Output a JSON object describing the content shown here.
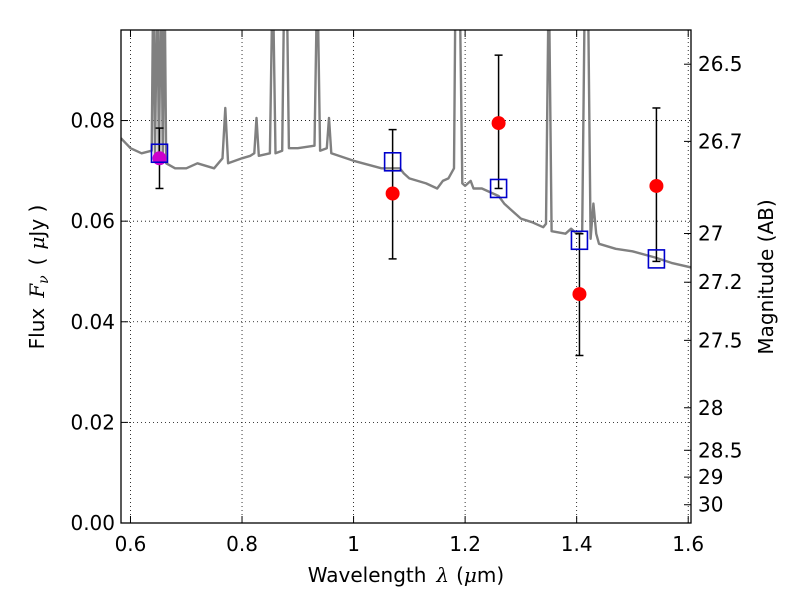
{
  "chart_data": {
    "type": "line",
    "xlabel": "Wavelength",
    "xlabel_symbol": "λ",
    "xlabel_unit_open": "(",
    "xlabel_unit_mu": "μ",
    "xlabel_unit_rest": "m)",
    "ylabel": "Flux",
    "ylabel_symbol": "F",
    "ylabel_sub": "ν",
    "ylabel_unit_open": "(",
    "ylabel_unit_mu": "μ",
    "ylabel_unit_rest": "Jy )",
    "y2label": "Magnitude (AB)",
    "xlim": [
      0.583,
      1.605
    ],
    "ylim": [
      0.0,
      0.098
    ],
    "grid": true,
    "x_ticks": [
      {
        "value": 0.6,
        "label": "0.6"
      },
      {
        "value": 0.8,
        "label": "0.8"
      },
      {
        "value": 1.0,
        "label": "1"
      },
      {
        "value": 1.2,
        "label": "1.2"
      },
      {
        "value": 1.4,
        "label": "1.4"
      },
      {
        "value": 1.6,
        "label": "1.6"
      }
    ],
    "y_ticks": [
      {
        "value": 0.0,
        "label": "0.00"
      },
      {
        "value": 0.02,
        "label": "0.02"
      },
      {
        "value": 0.04,
        "label": "0.04"
      },
      {
        "value": 0.06,
        "label": "0.06"
      },
      {
        "value": 0.08,
        "label": "0.08"
      }
    ],
    "y2_ticks": [
      {
        "label": "26.5",
        "mag": 26.5
      },
      {
        "label": "26.7",
        "mag": 26.7
      },
      {
        "label": "27",
        "mag": 27.0
      },
      {
        "label": "27.2",
        "mag": 27.2
      },
      {
        "label": "27.5",
        "mag": 27.5
      },
      {
        "label": "28",
        "mag": 28.0
      },
      {
        "label": "28.5",
        "mag": 28.5
      },
      {
        "label": "29",
        "mag": 29.0
      },
      {
        "label": "30",
        "mag": 30.0
      }
    ],
    "model_spectrum": {
      "color": "#808080",
      "points": [
        [
          0.583,
          0.0765
        ],
        [
          0.6,
          0.0745
        ],
        [
          0.62,
          0.0735
        ],
        [
          0.638,
          0.074
        ],
        [
          0.641,
          0.11
        ],
        [
          0.644,
          0.073
        ],
        [
          0.648,
          0.11
        ],
        [
          0.651,
          0.0725
        ],
        [
          0.655,
          0.11
        ],
        [
          0.658,
          0.072
        ],
        [
          0.661,
          0.11
        ],
        [
          0.664,
          0.0715
        ],
        [
          0.68,
          0.0705
        ],
        [
          0.7,
          0.0705
        ],
        [
          0.72,
          0.0715
        ],
        [
          0.75,
          0.0705
        ],
        [
          0.765,
          0.0725
        ],
        [
          0.77,
          0.0825
        ],
        [
          0.775,
          0.0715
        ],
        [
          0.8,
          0.0725
        ],
        [
          0.815,
          0.073
        ],
        [
          0.822,
          0.0735
        ],
        [
          0.826,
          0.0805
        ],
        [
          0.83,
          0.073
        ],
        [
          0.85,
          0.0735
        ],
        [
          0.855,
          0.11
        ],
        [
          0.86,
          0.0735
        ],
        [
          0.872,
          0.074
        ],
        [
          0.876,
          0.11
        ],
        [
          0.88,
          0.11
        ],
        [
          0.884,
          0.0745
        ],
        [
          0.9,
          0.0745
        ],
        [
          0.93,
          0.075
        ],
        [
          0.935,
          0.11
        ],
        [
          0.94,
          0.074
        ],
        [
          0.952,
          0.0745
        ],
        [
          0.956,
          0.0805
        ],
        [
          0.96,
          0.0735
        ],
        [
          1.0,
          0.072
        ],
        [
          1.05,
          0.0705
        ],
        [
          1.083,
          0.0705
        ],
        [
          1.09,
          0.0695
        ],
        [
          1.1,
          0.0685
        ],
        [
          1.13,
          0.0675
        ],
        [
          1.15,
          0.0665
        ],
        [
          1.16,
          0.068
        ],
        [
          1.17,
          0.0685
        ],
        [
          1.18,
          0.0705
        ],
        [
          1.183,
          0.11
        ],
        [
          1.19,
          0.11
        ],
        [
          1.195,
          0.0675
        ],
        [
          1.2,
          0.067
        ],
        [
          1.21,
          0.068
        ],
        [
          1.215,
          0.0665
        ],
        [
          1.23,
          0.0665
        ],
        [
          1.25,
          0.0655
        ],
        [
          1.26,
          0.065
        ],
        [
          1.27,
          0.0635
        ],
        [
          1.28,
          0.0625
        ],
        [
          1.3,
          0.0605
        ],
        [
          1.32,
          0.0598
        ],
        [
          1.34,
          0.0588
        ],
        [
          1.345,
          0.0595
        ],
        [
          1.35,
          0.11
        ],
        [
          1.355,
          0.058
        ],
        [
          1.38,
          0.0575
        ],
        [
          1.39,
          0.0585
        ],
        [
          1.4,
          0.0575
        ],
        [
          1.41,
          0.058
        ],
        [
          1.415,
          0.11
        ],
        [
          1.42,
          0.11
        ],
        [
          1.425,
          0.0565
        ],
        [
          1.43,
          0.0635
        ],
        [
          1.435,
          0.0575
        ],
        [
          1.44,
          0.0555
        ],
        [
          1.47,
          0.0545
        ],
        [
          1.5,
          0.054
        ],
        [
          1.54,
          0.0528
        ],
        [
          1.57,
          0.0517
        ],
        [
          1.605,
          0.0508
        ]
      ]
    },
    "series": [
      {
        "marker": "square",
        "color": "#0000cc",
        "points": [
          {
            "x": 0.652,
            "y": 0.0735
          },
          {
            "x": 1.07,
            "y": 0.0718
          },
          {
            "x": 1.26,
            "y": 0.0665
          },
          {
            "x": 1.405,
            "y": 0.0562
          },
          {
            "x": 1.543,
            "y": 0.0525
          }
        ]
      },
      {
        "marker": "circle",
        "color": "#ff0000",
        "points": [
          {
            "x": 0.652,
            "y": 0.0725,
            "yerr_low": 0.0665,
            "yerr_high": 0.0785,
            "color": "#cc00cc"
          },
          {
            "x": 1.07,
            "y": 0.0655,
            "yerr_low": 0.0525,
            "yerr_high": 0.0782
          },
          {
            "x": 1.26,
            "y": 0.0795,
            "yerr_low": 0.0665,
            "yerr_high": 0.093
          },
          {
            "x": 1.405,
            "y": 0.0455,
            "yerr_low": 0.0333,
            "yerr_high": 0.0575
          },
          {
            "x": 1.543,
            "y": 0.067,
            "yerr_low": 0.052,
            "yerr_high": 0.0825
          }
        ]
      }
    ]
  }
}
